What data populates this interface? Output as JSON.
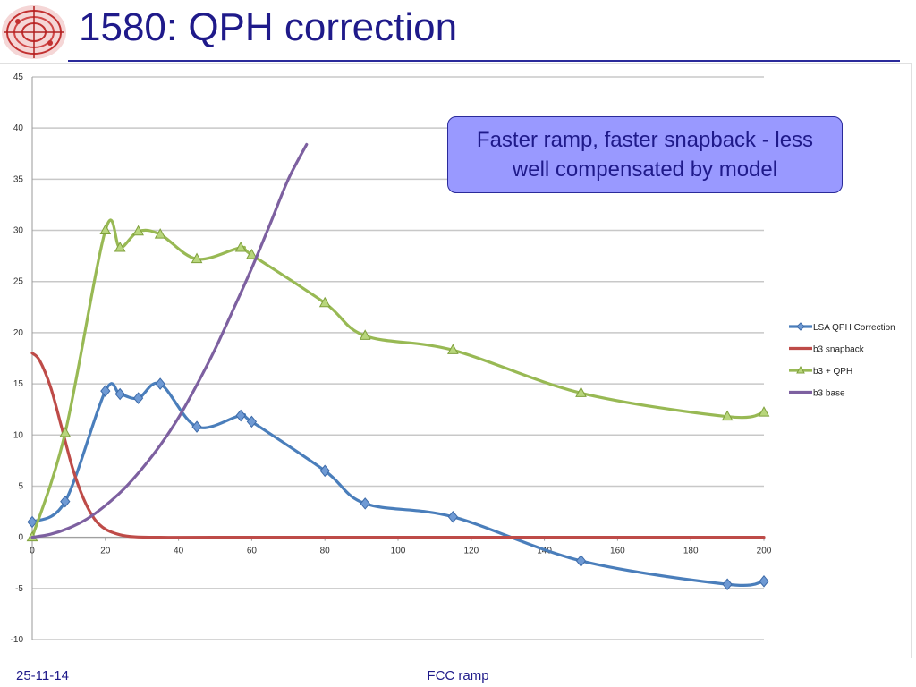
{
  "slide": {
    "title": "1580: QPH correction",
    "callout_text": "Faster ramp, faster snapback - less well compensated by model",
    "footer_date": "25-11-14",
    "footer_center": "FCC ramp"
  },
  "colors": {
    "title": "#1f1a8a",
    "callout_fill": "#9999ff",
    "gridline": "#c8c8c8"
  },
  "chart_data": {
    "type": "line",
    "title": "",
    "xlabel": "",
    "ylabel": "",
    "xlim": [
      0,
      200
    ],
    "ylim": [
      -10,
      45
    ],
    "x_ticks": [
      0,
      20,
      40,
      60,
      80,
      100,
      120,
      140,
      160,
      180,
      200
    ],
    "y_ticks": [
      -10,
      -5,
      0,
      5,
      10,
      15,
      20,
      25,
      30,
      35,
      40,
      45
    ],
    "grid": "horizontal",
    "legend_position": "right",
    "series": [
      {
        "name": "LSA QPH Correction",
        "color": "#4a7ebb",
        "marker": "diamond",
        "x": [
          0,
          9,
          20,
          24,
          29,
          35,
          45,
          57,
          60,
          80,
          91,
          115,
          150,
          190,
          200
        ],
        "y": [
          1.5,
          3.5,
          14.3,
          14.0,
          13.6,
          15.0,
          10.8,
          11.9,
          11.3,
          6.5,
          3.3,
          2.0,
          -2.3,
          -4.6,
          -4.3
        ]
      },
      {
        "name": "b3 snapback",
        "color": "#be4b48",
        "marker": "none",
        "x": [
          0,
          2,
          5,
          8,
          11,
          14,
          17,
          20,
          24,
          28,
          35,
          50,
          100,
          150,
          200
        ],
        "y": [
          18.0,
          17.3,
          14.7,
          10.8,
          6.8,
          3.8,
          1.8,
          0.8,
          0.25,
          0.05,
          0.0,
          0.0,
          0.0,
          0.0,
          0.0
        ]
      },
      {
        "name": "b3 + QPH",
        "color": "#98b954",
        "marker": "triangle",
        "x": [
          0,
          9,
          20,
          24,
          29,
          35,
          45,
          57,
          60,
          80,
          91,
          115,
          150,
          190,
          200
        ],
        "y": [
          0.0,
          10.2,
          30.0,
          28.3,
          29.9,
          29.6,
          27.2,
          28.3,
          27.6,
          22.9,
          19.7,
          18.3,
          14.1,
          11.8,
          12.2
        ]
      },
      {
        "name": "b3 base",
        "color": "#7d60a0",
        "marker": "none",
        "x": [
          0,
          5,
          10,
          15,
          20,
          25,
          30,
          35,
          40,
          45,
          50,
          55,
          60,
          65,
          70,
          75
        ],
        "y": [
          0.0,
          0.3,
          0.9,
          1.8,
          3.1,
          4.7,
          6.7,
          9.0,
          11.7,
          14.9,
          18.4,
          22.3,
          26.3,
          30.6,
          35.0,
          38.4
        ]
      }
    ]
  }
}
